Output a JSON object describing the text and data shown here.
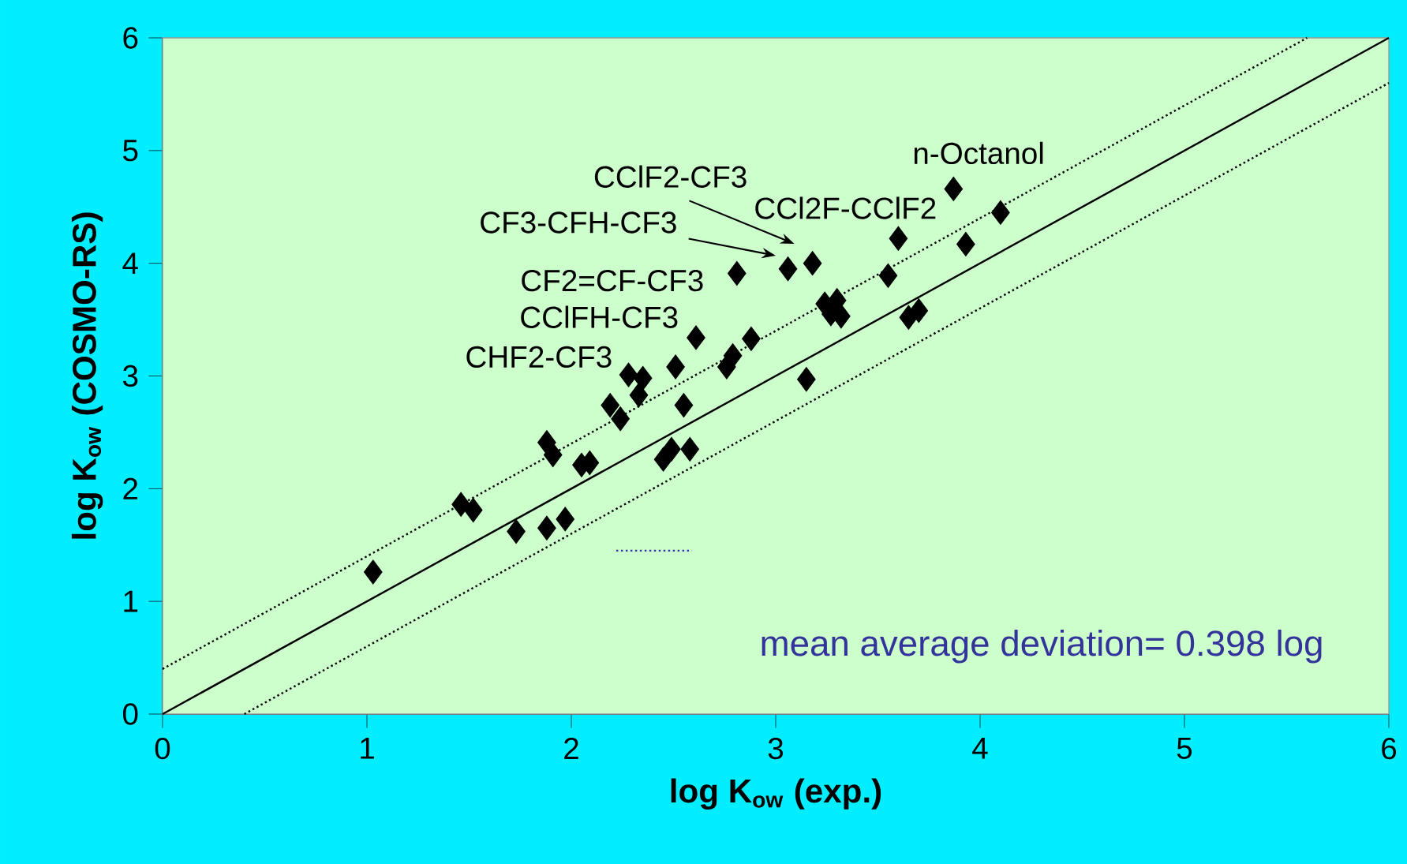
{
  "chart_data": {
    "type": "scatter",
    "xlabel": "log K$_{ow}$ (exp.)",
    "ylabel": "log K$_{ow}$ (COSMO-RS)",
    "xlim": [
      0,
      6
    ],
    "ylim": [
      0,
      6
    ],
    "xticks": [
      0,
      1,
      2,
      3,
      4,
      5,
      6
    ],
    "yticks": [
      0,
      1,
      2,
      3,
      4,
      5,
      6
    ],
    "series": [
      {
        "color": "#000000",
        "marker": "diamond",
        "x": [
          1.03,
          1.46,
          1.52,
          1.73,
          1.88,
          1.91,
          1.88,
          1.97,
          2.05,
          2.09,
          2.19,
          2.24,
          2.28,
          2.33,
          2.35,
          2.45,
          2.49,
          2.51,
          2.55,
          2.58,
          2.61,
          2.76,
          2.79,
          2.81,
          2.88,
          3.06,
          3.15,
          3.18,
          3.24,
          3.27,
          3.3,
          3.32,
          3.55,
          3.6,
          3.65,
          3.7,
          3.87,
          3.93,
          4.1
        ],
        "values": [
          1.26,
          1.86,
          1.81,
          1.62,
          2.41,
          2.3,
          1.65,
          1.73,
          2.21,
          2.23,
          2.74,
          2.62,
          3.01,
          2.83,
          2.98,
          2.26,
          2.35,
          3.08,
          2.74,
          2.35,
          3.34,
          3.08,
          3.18,
          3.91,
          3.33,
          3.95,
          2.97,
          4.0,
          3.64,
          3.55,
          3.67,
          3.53,
          3.89,
          4.22,
          3.52,
          3.58,
          4.66,
          4.17,
          4.45
        ]
      },
      {
        "type": "line",
        "color": "#000000",
        "line_style": "solid",
        "x": [
          0,
          6
        ],
        "values": [
          0,
          6
        ]
      },
      {
        "type": "line",
        "color": "#000000",
        "line_style": "dotted",
        "x": [
          0,
          5.6
        ],
        "values": [
          0.4,
          6
        ]
      },
      {
        "type": "line",
        "color": "#000000",
        "line_style": "dotted",
        "x": [
          0.4,
          6
        ],
        "values": [
          0,
          5.6
        ]
      },
      {
        "type": "line",
        "color": "#3333aa",
        "line_style": "dotted",
        "x": [
          2.22,
          2.59
        ],
        "values": [
          1.45,
          1.45
        ]
      }
    ],
    "annotations": [
      {
        "text": "n-Octanol",
        "x": 3.87,
        "y": 4.66
      },
      {
        "text": "CCl2F-CClF2",
        "x": 3.6,
        "y": 4.22
      },
      {
        "text": "CClF2-CF3",
        "x": 3.06,
        "y": 3.95
      },
      "CF3-CFH-CF3",
      {
        "text": "CF2=CF-CF3",
        "x": 2.81,
        "y": 3.91
      },
      {
        "text": "CClFH-CF3",
        "x": 2.61,
        "y": 3.34
      },
      {
        "text": "CHF2-CF3",
        "x": 2.28,
        "y": 3.01
      },
      "mean average deviation= 0.398 log"
    ]
  }
}
